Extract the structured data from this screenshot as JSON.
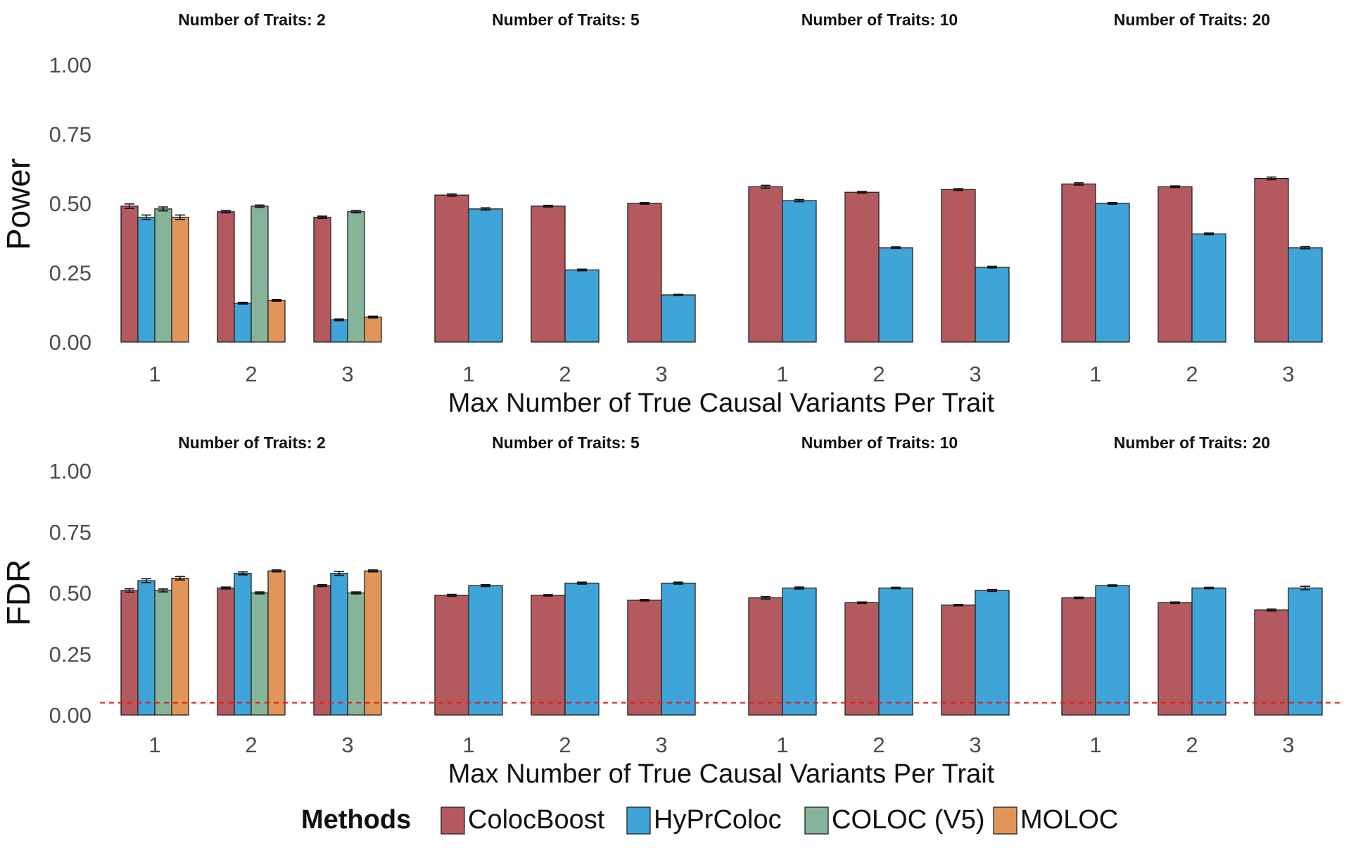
{
  "colors": {
    "ColocBoost": "#B45A5E",
    "HyPrColoc": "#3FA4D7",
    "COLOC (V5)": "#86B49B",
    "MOLOC": "#E0955A",
    "reference_line": "#E41A1C"
  },
  "legend": {
    "title": "Methods",
    "items": [
      "ColocBoost",
      "HyPrColoc",
      "COLOC (V5)",
      "MOLOC"
    ]
  },
  "chart_data": [
    {
      "type": "bar",
      "panel": "power",
      "ylabel": "Power",
      "xlabel": "Max Number of True Causal Variants Per Trait",
      "ylim": [
        0,
        1
      ],
      "yticks": [
        "0.00",
        "0.25",
        "0.50",
        "0.75",
        "1.00"
      ],
      "reference_line": null,
      "facets": [
        {
          "title": "Number of Traits: 2",
          "categories": [
            "1",
            "2",
            "3"
          ],
          "series": [
            {
              "name": "ColocBoost",
              "values": [
                0.49,
                0.47,
                0.45
              ],
              "err": [
                0.008,
                0.004,
                0.004
              ]
            },
            {
              "name": "HyPrColoc",
              "values": [
                0.45,
                0.14,
                0.08
              ],
              "err": [
                0.008,
                0.003,
                0.003
              ]
            },
            {
              "name": "COLOC (V5)",
              "values": [
                0.48,
                0.49,
                0.47
              ],
              "err": [
                0.007,
                0.004,
                0.004
              ]
            },
            {
              "name": "MOLOC",
              "values": [
                0.45,
                0.15,
                0.09
              ],
              "err": [
                0.008,
                0.003,
                0.003
              ]
            }
          ]
        },
        {
          "title": "Number of Traits: 5",
          "categories": [
            "1",
            "2",
            "3"
          ],
          "series": [
            {
              "name": "ColocBoost",
              "values": [
                0.53,
                0.49,
                0.5
              ],
              "err": [
                0.004,
                0.003,
                0.003
              ]
            },
            {
              "name": "HyPrColoc",
              "values": [
                0.48,
                0.26,
                0.17
              ],
              "err": [
                0.004,
                0.003,
                0.002
              ]
            }
          ]
        },
        {
          "title": "Number of Traits: 10",
          "categories": [
            "1",
            "2",
            "3"
          ],
          "series": [
            {
              "name": "ColocBoost",
              "values": [
                0.56,
                0.54,
                0.55
              ],
              "err": [
                0.005,
                0.003,
                0.003
              ]
            },
            {
              "name": "HyPrColoc",
              "values": [
                0.51,
                0.34,
                0.27
              ],
              "err": [
                0.004,
                0.003,
                0.003
              ]
            }
          ]
        },
        {
          "title": "Number of Traits: 20",
          "categories": [
            "1",
            "2",
            "3"
          ],
          "series": [
            {
              "name": "ColocBoost",
              "values": [
                0.57,
                0.56,
                0.59
              ],
              "err": [
                0.004,
                0.003,
                0.005
              ]
            },
            {
              "name": "HyPrColoc",
              "values": [
                0.5,
                0.39,
                0.34
              ],
              "err": [
                0.003,
                0.003,
                0.004
              ]
            }
          ]
        }
      ]
    },
    {
      "type": "bar",
      "panel": "fdr",
      "ylabel": "FDR",
      "xlabel": "Max Number of True Causal Variants Per Trait",
      "ylim": [
        0,
        1
      ],
      "yticks": [
        "0.00",
        "0.25",
        "0.50",
        "0.75",
        "1.00"
      ],
      "reference_line": 0.05,
      "facets": [
        {
          "title": "Number of Traits: 2",
          "categories": [
            "1",
            "2",
            "3"
          ],
          "series": [
            {
              "name": "ColocBoost",
              "values": [
                0.51,
                0.52,
                0.53
              ],
              "err": [
                0.007,
                0.004,
                0.004
              ]
            },
            {
              "name": "HyPrColoc",
              "values": [
                0.55,
                0.58,
                0.58
              ],
              "err": [
                0.008,
                0.006,
                0.008
              ]
            },
            {
              "name": "COLOC (V5)",
              "values": [
                0.51,
                0.5,
                0.5
              ],
              "err": [
                0.006,
                0.004,
                0.004
              ]
            },
            {
              "name": "MOLOC",
              "values": [
                0.56,
                0.59,
                0.59
              ],
              "err": [
                0.007,
                0.004,
                0.004
              ]
            }
          ]
        },
        {
          "title": "Number of Traits: 5",
          "categories": [
            "1",
            "2",
            "3"
          ],
          "series": [
            {
              "name": "ColocBoost",
              "values": [
                0.49,
                0.49,
                0.47
              ],
              "err": [
                0.004,
                0.003,
                0.003
              ]
            },
            {
              "name": "HyPrColoc",
              "values": [
                0.53,
                0.54,
                0.54
              ],
              "err": [
                0.004,
                0.004,
                0.004
              ]
            }
          ]
        },
        {
          "title": "Number of Traits: 10",
          "categories": [
            "1",
            "2",
            "3"
          ],
          "series": [
            {
              "name": "ColocBoost",
              "values": [
                0.48,
                0.46,
                0.45
              ],
              "err": [
                0.005,
                0.003,
                0.003
              ]
            },
            {
              "name": "HyPrColoc",
              "values": [
                0.52,
                0.52,
                0.51
              ],
              "err": [
                0.004,
                0.003,
                0.004
              ]
            }
          ]
        },
        {
          "title": "Number of Traits: 20",
          "categories": [
            "1",
            "2",
            "3"
          ],
          "series": [
            {
              "name": "ColocBoost",
              "values": [
                0.48,
                0.46,
                0.43
              ],
              "err": [
                0.003,
                0.003,
                0.004
              ]
            },
            {
              "name": "HyPrColoc",
              "values": [
                0.53,
                0.52,
                0.52
              ],
              "err": [
                0.003,
                0.003,
                0.007
              ]
            }
          ]
        }
      ]
    }
  ]
}
